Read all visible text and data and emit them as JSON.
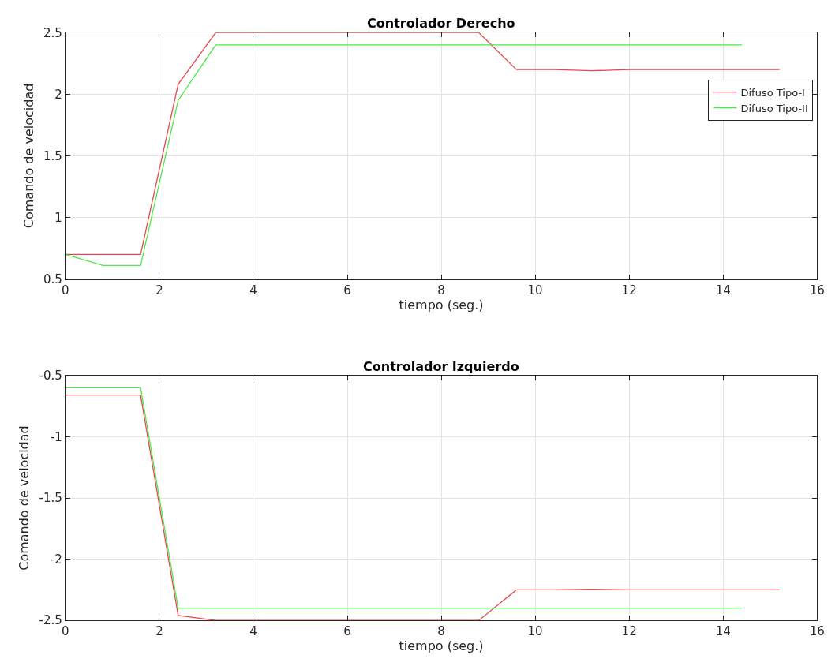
{
  "chart_data": [
    {
      "type": "line",
      "title": "Controlador Derecho",
      "xlabel": "tiempo (seg.)",
      "ylabel": "Comando de velocidad",
      "xlim": [
        0,
        16
      ],
      "xticks": [
        0,
        2,
        4,
        6,
        8,
        10,
        12,
        14,
        16
      ],
      "ylim": [
        0.5,
        2.5
      ],
      "yticks": [
        0.5,
        1,
        1.5,
        2,
        2.5
      ],
      "grid": true,
      "legend": "top right",
      "line_style": "solid",
      "marker": "none",
      "series": [
        {
          "name": "Difuso Tipo-I",
          "color": "#e8474f",
          "x": [
            0,
            0.8,
            1.6,
            2.4,
            3.2,
            4,
            8.8,
            9.6,
            10.4,
            11.2,
            12,
            15.2
          ],
          "values": [
            0.7,
            0.7,
            0.7,
            2.08,
            2.5,
            2.5,
            2.5,
            2.2,
            2.2,
            2.19,
            2.2,
            2.2
          ]
        },
        {
          "name": "Difuso Tipo-II",
          "color": "#4ee84a",
          "x": [
            0,
            0.8,
            1.6,
            2.4,
            3.2,
            14.4
          ],
          "values": [
            0.7,
            0.61,
            0.61,
            1.95,
            2.4,
            2.4
          ]
        }
      ]
    },
    {
      "type": "line",
      "title": "Controlador Izquierdo",
      "xlabel": "tiempo (seg.)",
      "ylabel": "Comando de velocidad",
      "xlim": [
        0,
        16
      ],
      "xticks": [
        0,
        2,
        4,
        6,
        8,
        10,
        12,
        14,
        16
      ],
      "ylim": [
        -2.5,
        -0.5
      ],
      "yticks": [
        -2.5,
        -2,
        -1.5,
        -1,
        -0.5
      ],
      "grid": true,
      "line_style": "solid",
      "marker": "none",
      "series": [
        {
          "color": "#e8474f",
          "x": [
            0,
            1.6,
            2.4,
            3.2,
            8.8,
            9.6,
            10.4,
            11.2,
            12,
            15.2
          ],
          "values": [
            -0.66,
            -0.66,
            -2.46,
            -2.5,
            -2.5,
            -2.25,
            -2.25,
            -2.245,
            -2.25,
            -2.25
          ]
        },
        {
          "color": "#4ee84a",
          "x": [
            0,
            1.6,
            2.4,
            14.4
          ],
          "values": [
            -0.6,
            -0.6,
            -2.4,
            -2.4
          ]
        }
      ]
    }
  ]
}
